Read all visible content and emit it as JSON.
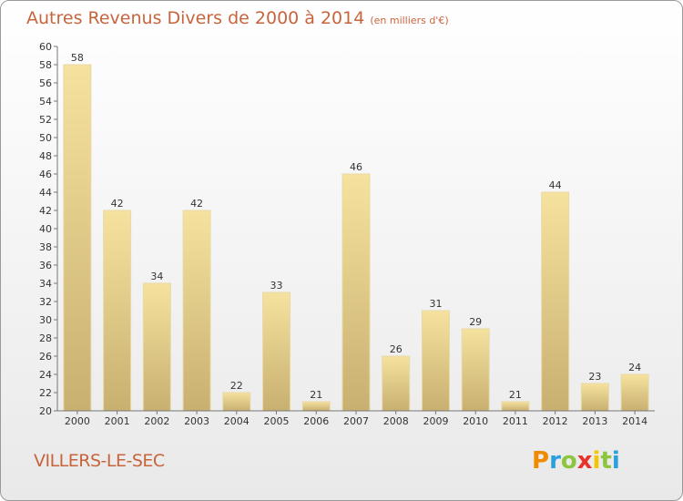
{
  "title": "Autres Revenus Divers de 2000 à 2014",
  "subtitle": "(en milliers d'€)",
  "commune": "VILLERS-LE-SEC",
  "logo": {
    "letters": [
      "P",
      "r",
      "o",
      "x",
      "i",
      "t",
      "i"
    ],
    "colors": [
      "#f08a00",
      "#2aa0dc",
      "#8cc63e",
      "#e8322a",
      "#f5c400",
      "#8cc63e",
      "#2aa0dc"
    ]
  },
  "colors": {
    "bar_top": "#f6e29f",
    "bar_bottom": "#c8b070",
    "title": "#c8643c"
  },
  "chart_data": {
    "type": "bar",
    "title": "Autres Revenus Divers de 2000 à 2014",
    "subtitle": "(en milliers d'€)",
    "categories": [
      "2000",
      "2001",
      "2002",
      "2003",
      "2004",
      "2005",
      "2006",
      "2007",
      "2008",
      "2009",
      "2010",
      "2011",
      "2012",
      "2013",
      "2014"
    ],
    "values": [
      58,
      42,
      34,
      42,
      22,
      33,
      21,
      46,
      26,
      31,
      29,
      21,
      44,
      23,
      24
    ],
    "ylim": [
      20,
      60
    ],
    "yticks": [
      20,
      22,
      24,
      26,
      28,
      30,
      32,
      34,
      36,
      38,
      40,
      42,
      44,
      46,
      48,
      50,
      52,
      54,
      56,
      58,
      60
    ],
    "grid": false,
    "legend": "none"
  }
}
